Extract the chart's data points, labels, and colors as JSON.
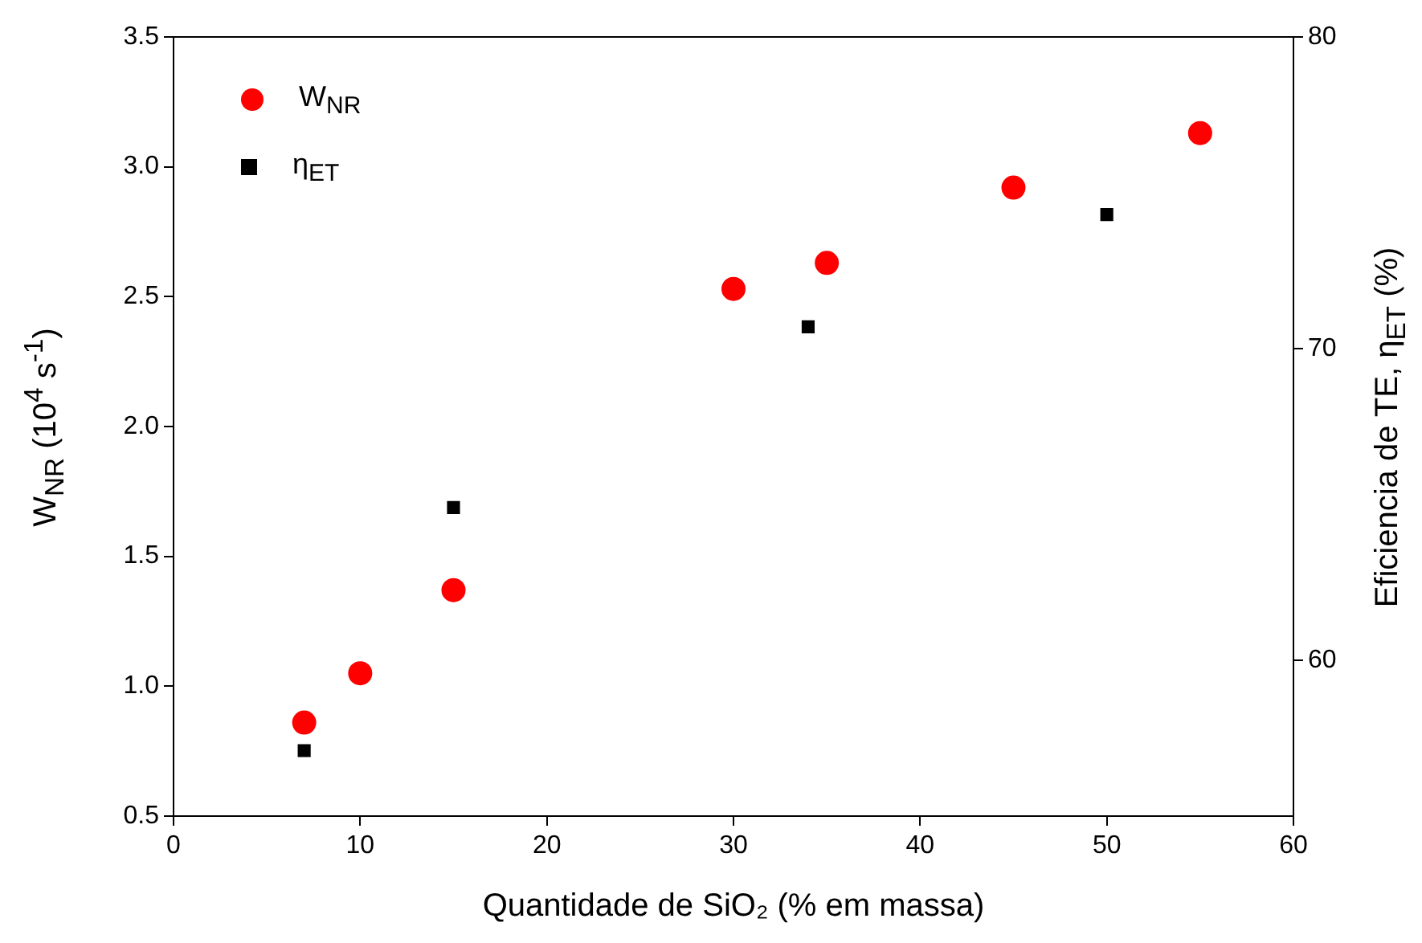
{
  "chart_data": {
    "type": "scatter",
    "xlabel": "Quantidade de SiO₂ (% em massa)",
    "ylabel": "W$_{NR}$ (10$^{4}$ s$^{-1}$)",
    "y2label": "Eficiencia de TE, η$_{ET}$ (%)",
    "xlim": [
      0,
      60
    ],
    "xticks": [
      0,
      10,
      20,
      30,
      40,
      50,
      60
    ],
    "ylim": [
      0.5,
      3.5
    ],
    "yticks": [
      0.5,
      {
        "value": 1,
        "label": "1.0"
      },
      1.5,
      {
        "value": 2,
        "label": "2.0"
      },
      2.5,
      {
        "value": 3,
        "label": "3.0"
      },
      3.5
    ],
    "y2lim": [
      55,
      80
    ],
    "y2ticks": [
      60,
      70,
      80
    ],
    "grid": false,
    "legend": "top left",
    "series": [
      {
        "name": "W$_{NR}$",
        "color": "#ff0000",
        "marker": "circle",
        "x": [
          7,
          10,
          15,
          30,
          35,
          45,
          55
        ],
        "values": [
          0.86,
          1.05,
          1.37,
          2.53,
          2.63,
          2.92,
          3.13
        ]
      },
      {
        "name": "η$_{ET}$",
        "color": "#000000",
        "marker": "square",
        "axis": "y2",
        "x": [
          7,
          15,
          34,
          50
        ],
        "values": [
          57.1,
          64.9,
          70.7,
          74.3
        ]
      }
    ]
  }
}
